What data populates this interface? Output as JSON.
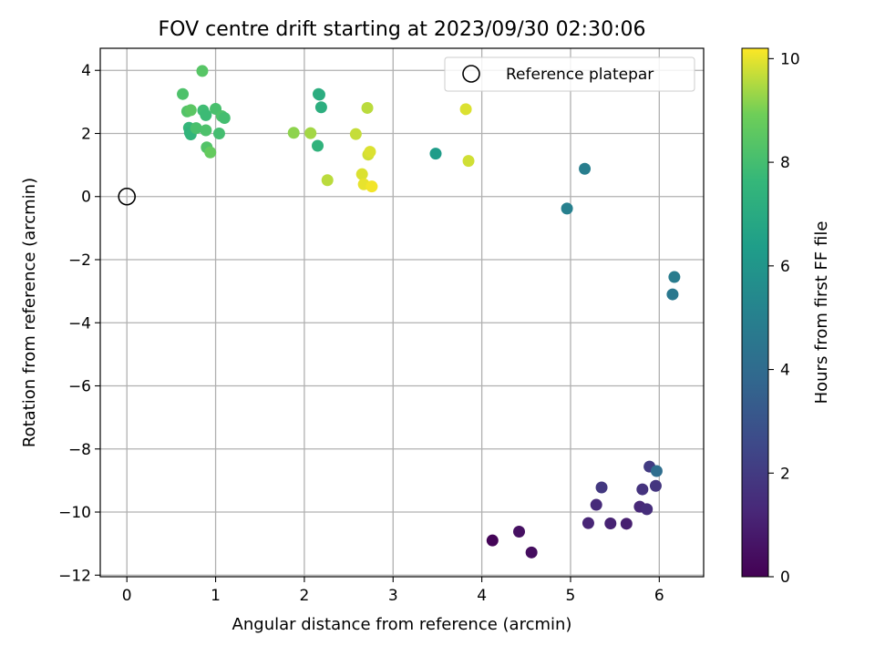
{
  "chart_data": {
    "type": "scatter",
    "title": "FOV centre drift starting at 2023/09/30 02:30:06",
    "xlabel": "Angular distance from reference (arcmin)",
    "ylabel": "Rotation from reference (arcmin)",
    "xlim": [
      -0.3,
      6.5
    ],
    "ylim": [
      -12.05,
      4.7
    ],
    "xticks": [
      0,
      1,
      2,
      3,
      4,
      5,
      6
    ],
    "yticks": [
      -12,
      -10,
      -8,
      -6,
      -4,
      -2,
      0,
      2,
      4
    ],
    "grid": true,
    "legend": {
      "label": "Reference platepar",
      "placement": "upper right"
    },
    "reference_point": {
      "x": 0,
      "y": 0
    },
    "colorbar": {
      "label": "Hours from first FF file",
      "colormap": "viridis",
      "range": [
        0,
        10.2
      ],
      "ticks": [
        0,
        2,
        4,
        6,
        8,
        10
      ]
    },
    "points": [
      {
        "x": 4.12,
        "y": -10.9,
        "c": 0.1
      },
      {
        "x": 4.42,
        "y": -10.62,
        "c": 0.5
      },
      {
        "x": 4.56,
        "y": -11.28,
        "c": 0.4
      },
      {
        "x": 5.2,
        "y": -10.35,
        "c": 1.2
      },
      {
        "x": 5.29,
        "y": -9.77,
        "c": 1.4
      },
      {
        "x": 5.35,
        "y": -9.22,
        "c": 1.9
      },
      {
        "x": 5.45,
        "y": -10.36,
        "c": 1.1
      },
      {
        "x": 5.63,
        "y": -10.37,
        "c": 1.0
      },
      {
        "x": 5.78,
        "y": -9.83,
        "c": 1.3
      },
      {
        "x": 5.81,
        "y": -9.28,
        "c": 1.7
      },
      {
        "x": 5.86,
        "y": -9.91,
        "c": 1.5
      },
      {
        "x": 5.89,
        "y": -8.56,
        "c": 2.0
      },
      {
        "x": 5.96,
        "y": -9.17,
        "c": 1.8
      },
      {
        "x": 5.97,
        "y": -8.7,
        "c": 4.1
      },
      {
        "x": 6.15,
        "y": -3.1,
        "c": 4.6
      },
      {
        "x": 6.17,
        "y": -2.55,
        "c": 4.8
      },
      {
        "x": 4.96,
        "y": -0.38,
        "c": 5.0
      },
      {
        "x": 5.16,
        "y": 0.88,
        "c": 4.9
      },
      {
        "x": 3.48,
        "y": 1.36,
        "c": 6.3
      },
      {
        "x": 0.63,
        "y": 3.25,
        "c": 8.2
      },
      {
        "x": 0.85,
        "y": 3.98,
        "c": 8.4
      },
      {
        "x": 0.68,
        "y": 2.7,
        "c": 8.3
      },
      {
        "x": 0.72,
        "y": 2.74,
        "c": 8.5
      },
      {
        "x": 0.86,
        "y": 2.73,
        "c": 7.9
      },
      {
        "x": 0.89,
        "y": 2.58,
        "c": 7.8
      },
      {
        "x": 1.0,
        "y": 2.78,
        "c": 8.1
      },
      {
        "x": 1.07,
        "y": 2.55,
        "c": 8.2
      },
      {
        "x": 1.1,
        "y": 2.49,
        "c": 8.0
      },
      {
        "x": 0.7,
        "y": 2.18,
        "c": 7.6
      },
      {
        "x": 0.71,
        "y": 2.03,
        "c": 7.4
      },
      {
        "x": 0.72,
        "y": 1.97,
        "c": 7.5
      },
      {
        "x": 0.78,
        "y": 2.17,
        "c": 8.1
      },
      {
        "x": 0.89,
        "y": 2.1,
        "c": 8.2
      },
      {
        "x": 1.04,
        "y": 2.0,
        "c": 8.0
      },
      {
        "x": 0.9,
        "y": 1.56,
        "c": 8.3
      },
      {
        "x": 0.94,
        "y": 1.4,
        "c": 8.7
      },
      {
        "x": 2.16,
        "y": 3.25,
        "c": 7.3
      },
      {
        "x": 2.17,
        "y": 3.23,
        "c": 7.1
      },
      {
        "x": 2.19,
        "y": 2.83,
        "c": 7.2
      },
      {
        "x": 2.15,
        "y": 1.61,
        "c": 7.4
      },
      {
        "x": 1.88,
        "y": 2.02,
        "c": 9.2
      },
      {
        "x": 2.07,
        "y": 2.01,
        "c": 9.4
      },
      {
        "x": 2.26,
        "y": 0.52,
        "c": 9.6
      },
      {
        "x": 2.58,
        "y": 1.98,
        "c": 9.7
      },
      {
        "x": 2.65,
        "y": 0.71,
        "c": 9.9
      },
      {
        "x": 2.67,
        "y": 0.39,
        "c": 10.0
      },
      {
        "x": 2.71,
        "y": 2.81,
        "c": 9.6
      },
      {
        "x": 2.72,
        "y": 1.33,
        "c": 9.8
      },
      {
        "x": 2.74,
        "y": 1.42,
        "c": 9.9
      },
      {
        "x": 2.76,
        "y": 0.32,
        "c": 10.1
      },
      {
        "x": 3.82,
        "y": 2.77,
        "c": 9.9
      },
      {
        "x": 3.85,
        "y": 1.13,
        "c": 9.8
      }
    ]
  }
}
